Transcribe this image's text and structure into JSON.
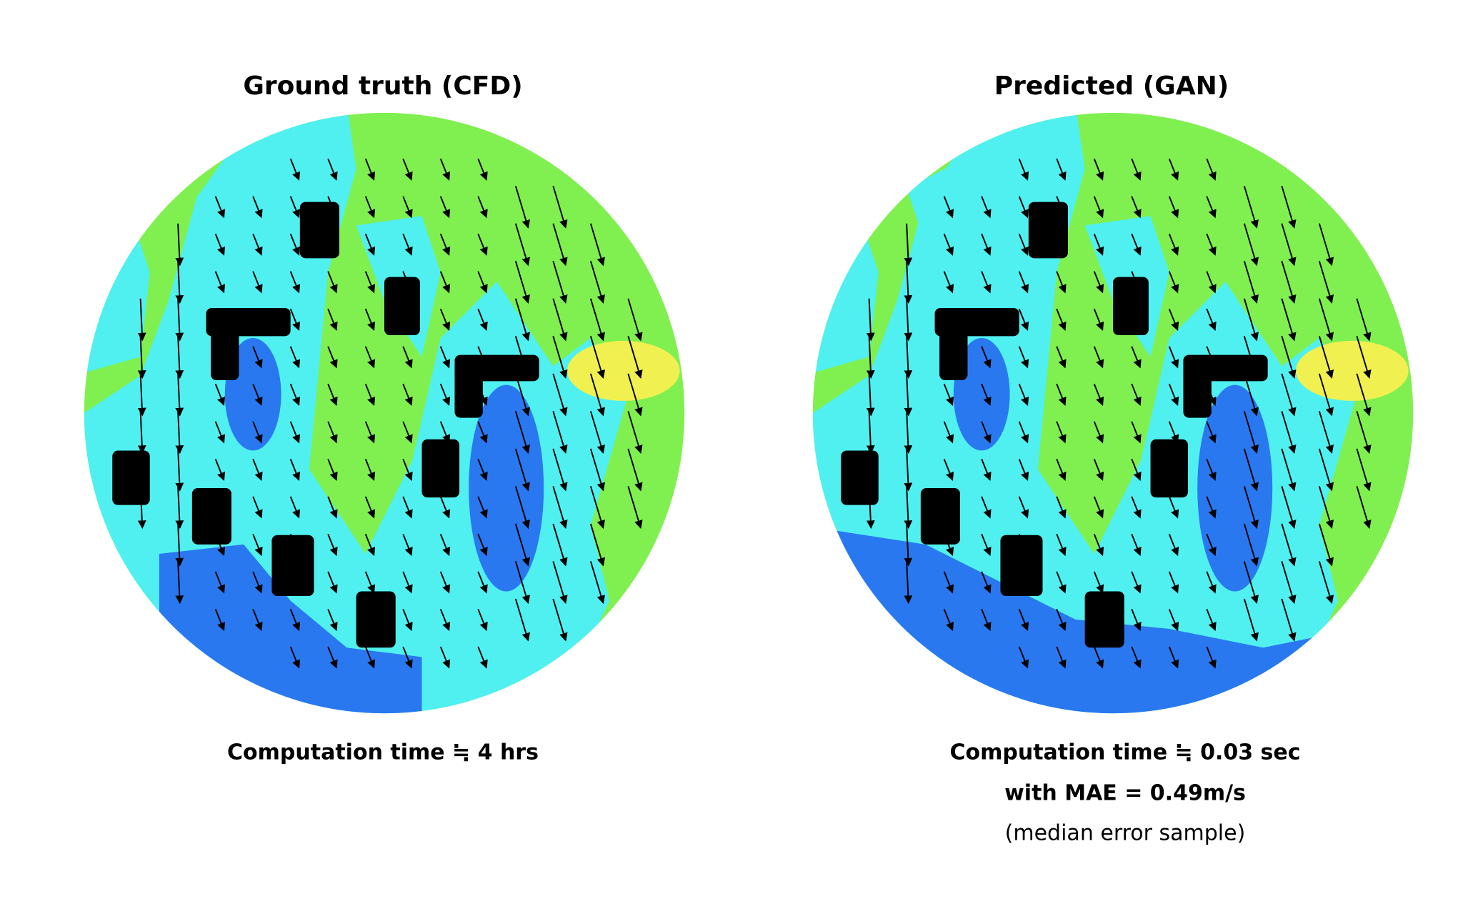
{
  "panels": [
    {
      "title": "Ground truth (CFD)",
      "caption": [
        "Computation time ≒ 4 hrs"
      ]
    },
    {
      "title": "Predicted (GAN)",
      "caption": [
        "Computation time ≒ 0.03 sec",
        "with MAE = 0.49m/s",
        "(median error sample)"
      ]
    }
  ]
}
